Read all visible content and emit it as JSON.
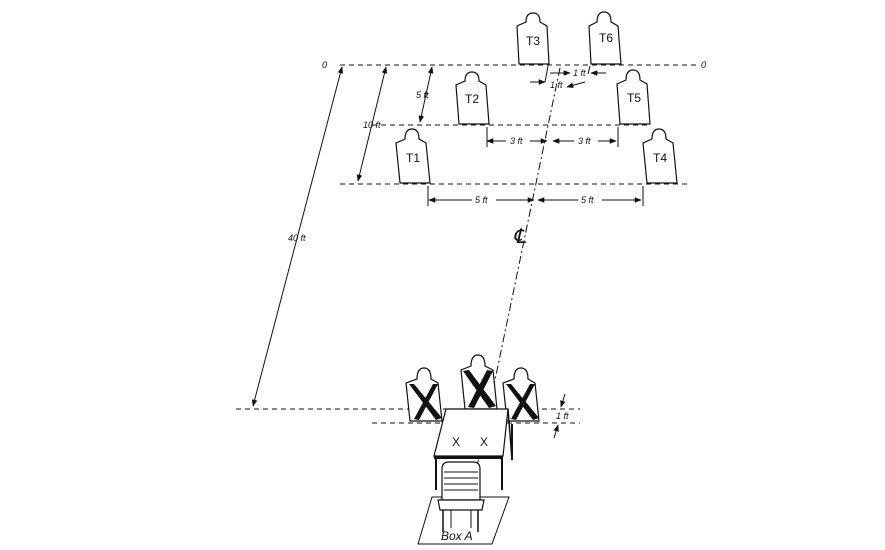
{
  "diagram": {
    "zero_left": "0",
    "zero_right": "0",
    "dim_5ft_side": "5 ft",
    "dim_10ft_side": "10 ft",
    "dim_40ft": "40 ft",
    "dim_1ft_t3t6_a": "1 ft",
    "dim_1ft_t3t6_b": "1 ft",
    "dim_3ft_left": "3 ft",
    "dim_3ft_right": "3 ft",
    "dim_5ft_left": "5 ft",
    "dim_5ft_right": "5 ft",
    "dim_1ft_bottom": "1 ft",
    "centerline_symbol": "℄",
    "targets": [
      "T1",
      "T2",
      "T3",
      "T4",
      "T5",
      "T6"
    ],
    "table_marks": [
      "X",
      "X"
    ],
    "box_label": "Box A"
  }
}
